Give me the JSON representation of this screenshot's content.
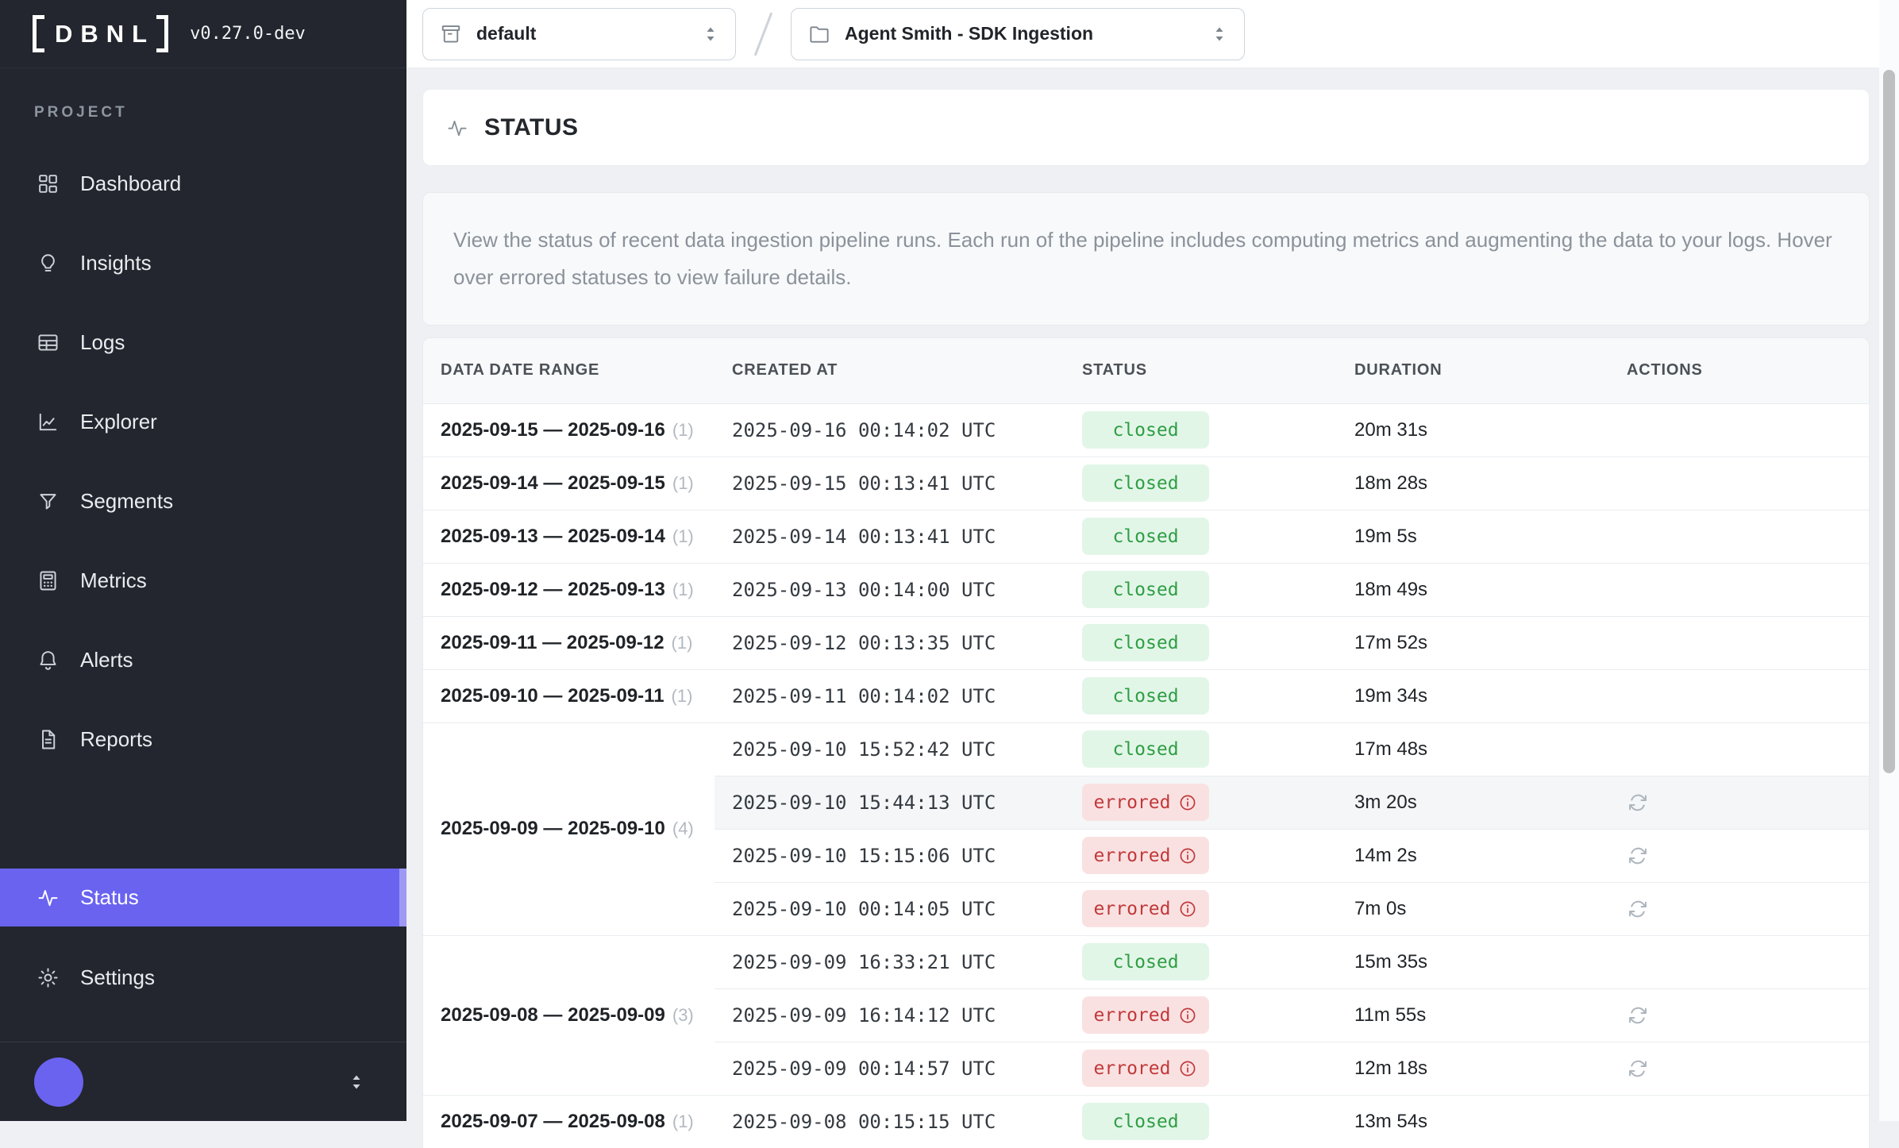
{
  "colors": {
    "accent": "#6a63f0",
    "sidebar_bg": "#23262e",
    "closed_text": "#2f9e44",
    "closed_bg": "#e2f6e8",
    "errored_text": "#c0393b",
    "errored_bg": "#fae1e1"
  },
  "sidebar": {
    "logo_text": "DBNL",
    "version": "v0.27.0-dev",
    "section_label": "PROJECT",
    "items": [
      {
        "id": "dashboard",
        "label": "Dashboard",
        "icon": "dashboard"
      },
      {
        "id": "insights",
        "label": "Insights",
        "icon": "insights"
      },
      {
        "id": "logs",
        "label": "Logs",
        "icon": "logs"
      },
      {
        "id": "explorer",
        "label": "Explorer",
        "icon": "explorer"
      },
      {
        "id": "segments",
        "label": "Segments",
        "icon": "segments"
      },
      {
        "id": "metrics",
        "label": "Metrics",
        "icon": "metrics"
      },
      {
        "id": "alerts",
        "label": "Alerts",
        "icon": "alerts"
      },
      {
        "id": "reports",
        "label": "Reports",
        "icon": "reports"
      }
    ],
    "bottom_items": [
      {
        "id": "status",
        "label": "Status",
        "icon": "status",
        "active": true
      },
      {
        "id": "settings",
        "label": "Settings",
        "icon": "settings",
        "active": false
      }
    ]
  },
  "topbar": {
    "namespace": {
      "value": "default",
      "icon": "box"
    },
    "separator": "/",
    "project": {
      "value": "Agent Smith - SDK Ingestion",
      "icon": "folder"
    }
  },
  "page": {
    "title": "STATUS",
    "description": "View the status of recent data ingestion pipeline runs. Each run of the pipeline includes computing metrics and augmenting the data to your logs. Hover over errored statuses to view failure details."
  },
  "table": {
    "columns": [
      "DATA DATE RANGE",
      "CREATED AT",
      "STATUS",
      "DURATION",
      "ACTIONS"
    ],
    "groups": [
      {
        "range": "2025-09-15 — 2025-09-16",
        "count": "(1)",
        "runs": [
          {
            "created_at": "2025-09-16 00:14:02 UTC",
            "status": "closed",
            "duration": "20m 31s",
            "retry": false,
            "highlight": false
          }
        ]
      },
      {
        "range": "2025-09-14 — 2025-09-15",
        "count": "(1)",
        "runs": [
          {
            "created_at": "2025-09-15 00:13:41 UTC",
            "status": "closed",
            "duration": "18m 28s",
            "retry": false,
            "highlight": false
          }
        ]
      },
      {
        "range": "2025-09-13 — 2025-09-14",
        "count": "(1)",
        "runs": [
          {
            "created_at": "2025-09-14 00:13:41 UTC",
            "status": "closed",
            "duration": "19m 5s",
            "retry": false,
            "highlight": false
          }
        ]
      },
      {
        "range": "2025-09-12 — 2025-09-13",
        "count": "(1)",
        "runs": [
          {
            "created_at": "2025-09-13 00:14:00 UTC",
            "status": "closed",
            "duration": "18m 49s",
            "retry": false,
            "highlight": false
          }
        ]
      },
      {
        "range": "2025-09-11 — 2025-09-12",
        "count": "(1)",
        "runs": [
          {
            "created_at": "2025-09-12 00:13:35 UTC",
            "status": "closed",
            "duration": "17m 52s",
            "retry": false,
            "highlight": false
          }
        ]
      },
      {
        "range": "2025-09-10 — 2025-09-11",
        "count": "(1)",
        "runs": [
          {
            "created_at": "2025-09-11 00:14:02 UTC",
            "status": "closed",
            "duration": "19m 34s",
            "retry": false,
            "highlight": false
          }
        ]
      },
      {
        "range": "2025-09-09 — 2025-09-10",
        "count": "(4)",
        "runs": [
          {
            "created_at": "2025-09-10 15:52:42 UTC",
            "status": "closed",
            "duration": "17m 48s",
            "retry": false,
            "highlight": false
          },
          {
            "created_at": "2025-09-10 15:44:13 UTC",
            "status": "errored",
            "duration": "3m 20s",
            "retry": true,
            "highlight": true
          },
          {
            "created_at": "2025-09-10 15:15:06 UTC",
            "status": "errored",
            "duration": "14m 2s",
            "retry": true,
            "highlight": false
          },
          {
            "created_at": "2025-09-10 00:14:05 UTC",
            "status": "errored",
            "duration": "7m 0s",
            "retry": true,
            "highlight": false
          }
        ]
      },
      {
        "range": "2025-09-08 — 2025-09-09",
        "count": "(3)",
        "runs": [
          {
            "created_at": "2025-09-09 16:33:21 UTC",
            "status": "closed",
            "duration": "15m 35s",
            "retry": false,
            "highlight": false
          },
          {
            "created_at": "2025-09-09 16:14:12 UTC",
            "status": "errored",
            "duration": "11m 55s",
            "retry": true,
            "highlight": false
          },
          {
            "created_at": "2025-09-09 00:14:57 UTC",
            "status": "errored",
            "duration": "12m 18s",
            "retry": true,
            "highlight": false
          }
        ]
      },
      {
        "range": "2025-09-07 — 2025-09-08",
        "count": "(1)",
        "runs": [
          {
            "created_at": "2025-09-08 00:15:15 UTC",
            "status": "closed",
            "duration": "13m 54s",
            "retry": false,
            "highlight": false
          }
        ]
      }
    ]
  }
}
